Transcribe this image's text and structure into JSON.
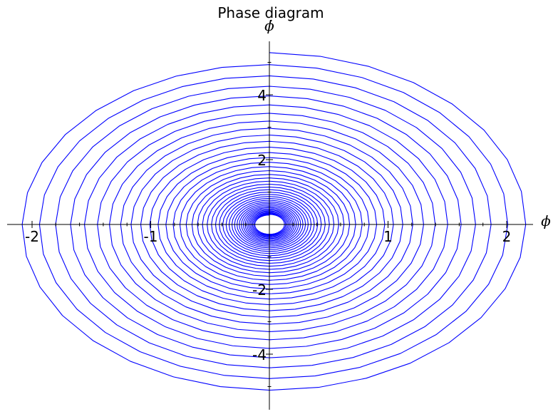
{
  "chart_data": {
    "type": "line",
    "title": "Phase diagram",
    "xlabel": "ϕ",
    "ylabel": "ϕ̇",
    "xlim": [
      -2.2,
      2.2
    ],
    "ylim": [
      -5.6,
      5.6
    ],
    "xticks": [
      -2,
      -1,
      1,
      2
    ],
    "xtick_labels": [
      "-2",
      "-1",
      "1",
      "2"
    ],
    "yticks": [
      -4,
      -2,
      2,
      4
    ],
    "ytick_labels": [
      "-4",
      "-2",
      "2",
      "4"
    ],
    "grid": false,
    "legend": "none",
    "line_color": "#0000ff",
    "series": [
      {
        "trajectory": "damped spiral",
        "start": {
          "x": 0.0,
          "y": 5.3
        },
        "end": {
          "x": 0.0,
          "y": 0.0
        },
        "max_x": 2.2,
        "min_x": -2.15,
        "max_y": 5.3,
        "min_y": -5.4,
        "points_per_revolution": 32,
        "revolutions": 40,
        "decay_per_revolution": 0.93
      }
    ]
  }
}
